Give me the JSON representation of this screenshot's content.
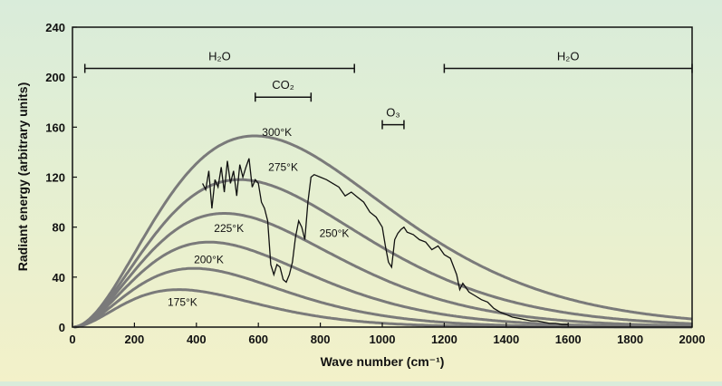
{
  "chart_data": {
    "type": "line",
    "title": "",
    "xlabel": "Wave number (cm⁻¹)",
    "ylabel": "Radiant energy (arbitrary units)",
    "xlim": [
      0,
      2000
    ],
    "ylim": [
      0,
      240
    ],
    "x_ticks": [
      0,
      200,
      400,
      600,
      800,
      1000,
      1200,
      1400,
      1600,
      1800,
      2000
    ],
    "y_ticks": [
      0,
      40,
      80,
      120,
      160,
      200,
      240
    ],
    "grid": false,
    "curve_color": "#7a7a7a",
    "spectrum_color": "#111111",
    "series": [
      {
        "name": "300°K",
        "temperature_K": 300,
        "peak": [
          590,
          153
        ],
        "label_at": [
          660,
          153
        ]
      },
      {
        "name": "275°K",
        "temperature_K": 275,
        "peak": [
          540,
          118
        ],
        "label_at": [
          680,
          125
        ]
      },
      {
        "name": "250°K",
        "temperature_K": 250,
        "peak": [
          490,
          91
        ],
        "label_at": [
          845,
          72
        ]
      },
      {
        "name": "225°K",
        "temperature_K": 225,
        "peak": [
          440,
          68
        ],
        "label_at": [
          505,
          76
        ]
      },
      {
        "name": "200°K",
        "temperature_K": 200,
        "peak": [
          390,
          47
        ],
        "label_at": [
          440,
          51
        ]
      },
      {
        "name": "175°K",
        "temperature_K": 175,
        "peak": [
          340,
          30
        ],
        "label_at": [
          355,
          17
        ]
      }
    ],
    "measured_spectrum": {
      "x": [
        420,
        430,
        440,
        450,
        460,
        470,
        480,
        490,
        500,
        510,
        520,
        530,
        540,
        550,
        560,
        570,
        580,
        590,
        600,
        610,
        620,
        630,
        640,
        650,
        660,
        670,
        680,
        690,
        700,
        710,
        720,
        730,
        740,
        750,
        760,
        770,
        780,
        800,
        820,
        840,
        860,
        880,
        900,
        920,
        940,
        960,
        980,
        1000,
        1010,
        1020,
        1030,
        1040,
        1050,
        1060,
        1070,
        1080,
        1100,
        1120,
        1140,
        1160,
        1180,
        1200,
        1220,
        1240,
        1250,
        1260,
        1280,
        1300,
        1320,
        1340,
        1360,
        1380,
        1400,
        1420,
        1440,
        1460,
        1480,
        1500,
        1520,
        1540,
        1560,
        1580,
        1600
      ],
      "y": [
        115,
        110,
        125,
        95,
        118,
        112,
        128,
        108,
        133,
        115,
        125,
        105,
        130,
        120,
        128,
        135,
        112,
        118,
        115,
        100,
        95,
        85,
        50,
        42,
        50,
        48,
        38,
        36,
        42,
        52,
        72,
        85,
        80,
        70,
        100,
        120,
        122,
        120,
        118,
        115,
        112,
        105,
        108,
        104,
        100,
        92,
        88,
        80,
        65,
        52,
        48,
        70,
        75,
        78,
        80,
        76,
        74,
        70,
        68,
        62,
        65,
        58,
        55,
        42,
        30,
        35,
        28,
        25,
        22,
        20,
        15,
        12,
        10,
        8,
        7,
        6,
        5,
        5,
        4,
        3,
        3,
        2,
        2
      ]
    },
    "bands": [
      {
        "label": "H₂O",
        "x_start": 40,
        "x_end": 910,
        "y": 207
      },
      {
        "label": "CO₂",
        "x_start": 590,
        "x_end": 770,
        "y": 184
      },
      {
        "label": "O₃",
        "x_start": 1000,
        "x_end": 1070,
        "y": 162
      },
      {
        "label": "H₂O",
        "x_start": 1200,
        "x_end": 2000,
        "y": 207
      }
    ]
  }
}
